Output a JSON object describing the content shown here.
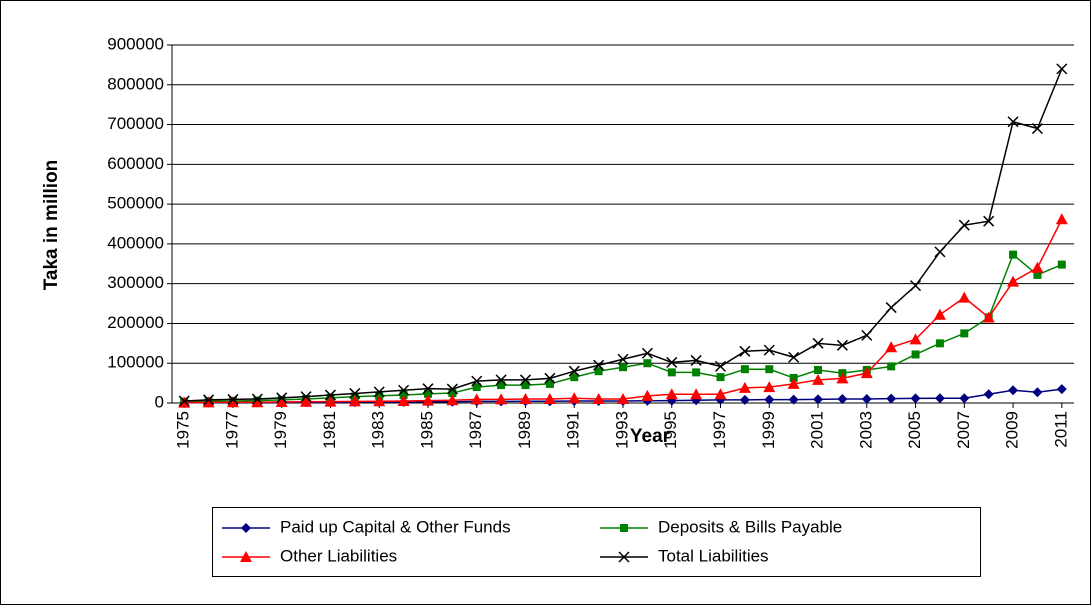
{
  "chart_data": {
    "type": "line",
    "ylabel": "Taka in million",
    "xlabel": "Year",
    "x": [
      1975,
      1976,
      1977,
      1978,
      1979,
      1980,
      1981,
      1982,
      1983,
      1984,
      1985,
      1986,
      1987,
      1988,
      1989,
      1990,
      1991,
      1992,
      1993,
      1994,
      1995,
      1996,
      1997,
      1998,
      1999,
      2000,
      2001,
      2002,
      2003,
      2004,
      2005,
      2006,
      2007,
      2008,
      2009,
      2010,
      2011
    ],
    "xlim": [
      1974.5,
      2011.5
    ],
    "xticks": [
      1975,
      1977,
      1979,
      1981,
      1983,
      1985,
      1987,
      1989,
      1991,
      1993,
      1995,
      1997,
      1999,
      2001,
      2003,
      2005,
      2007,
      2009,
      2011
    ],
    "ylim": [
      0,
      900000
    ],
    "yticks": [
      0,
      100000,
      200000,
      300000,
      400000,
      500000,
      600000,
      700000,
      800000,
      900000
    ],
    "grid": true,
    "legend": "bottom",
    "series": [
      {
        "name": "Paid up Capital & Other Funds",
        "color": "#000080",
        "marker": "diamond",
        "values": [
          1000,
          1000,
          1000,
          1200,
          1500,
          1500,
          1800,
          2000,
          2200,
          2500,
          3000,
          3000,
          4000,
          4000,
          4500,
          4500,
          5000,
          5000,
          5000,
          5500,
          6000,
          7000,
          8000,
          8000,
          8500,
          8500,
          9000,
          10000,
          10000,
          11000,
          11500,
          12000,
          12000,
          22000,
          32000,
          27000,
          35000
        ]
      },
      {
        "name": "Deposits & Bills Payable",
        "color": "#008000",
        "marker": "square",
        "values": [
          3000,
          4000,
          5000,
          6000,
          8000,
          10000,
          13000,
          16000,
          18000,
          20000,
          23000,
          25000,
          40000,
          45000,
          45000,
          48000,
          65000,
          80000,
          90000,
          100000,
          77000,
          77000,
          65000,
          85000,
          85000,
          63000,
          83000,
          75000,
          83000,
          92000,
          122000,
          150000,
          175000,
          215000,
          373000,
          322000,
          348000
        ]
      },
      {
        "name": "Other Liabilities",
        "color": "#ff0000",
        "marker": "triangle",
        "values": [
          1000,
          1500,
          2000,
          2000,
          2500,
          3000,
          3500,
          4000,
          4500,
          5000,
          6000,
          7000,
          9000,
          9000,
          10000,
          10000,
          12000,
          10000,
          10000,
          18000,
          22000,
          22000,
          22000,
          38000,
          40000,
          48000,
          58000,
          62000,
          75000,
          140000,
          160000,
          222000,
          265000,
          215000,
          305000,
          340000,
          462000
        ]
      },
      {
        "name": "Total Liabilities",
        "color": "#000000",
        "marker": "x",
        "values": [
          5000,
          8000,
          9000,
          10000,
          13000,
          16000,
          20000,
          24000,
          28000,
          32000,
          36000,
          35000,
          55000,
          58000,
          58000,
          62000,
          80000,
          95000,
          110000,
          125000,
          102000,
          107000,
          92000,
          130000,
          133000,
          115000,
          150000,
          145000,
          170000,
          240000,
          295000,
          380000,
          447000,
          457000,
          707000,
          690000,
          840000
        ]
      }
    ]
  }
}
